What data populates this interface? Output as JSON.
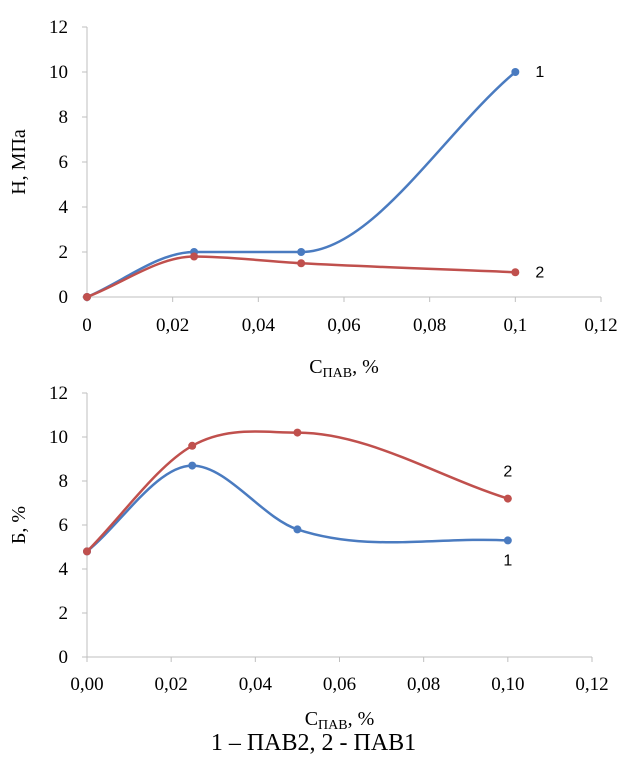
{
  "chart_data": [
    {
      "type": "line",
      "x": [
        0,
        0.025,
        0.05,
        0.1
      ],
      "series": [
        {
          "name": "1",
          "values": [
            0,
            2,
            2,
            10
          ],
          "color": "#4a7bc0"
        },
        {
          "name": "2",
          "values": [
            0,
            1.8,
            1.5,
            1.1
          ],
          "color": "#c0504d"
        }
      ],
      "xlim": [
        0,
        0.12
      ],
      "ylim": [
        0,
        12
      ],
      "xticks": [
        "0",
        "0,02",
        "0,04",
        "0,06",
        "0,08",
        "0,1",
        "0,12"
      ],
      "yticks": [
        "0",
        "2",
        "4",
        "6",
        "8",
        "10",
        "12"
      ],
      "ylabel": "Н, МПа",
      "xlabel_main": "С",
      "xlabel_sub": "ПАВ",
      "xlabel_unit": ", %",
      "grid": false,
      "smooth": true
    },
    {
      "type": "line",
      "x": [
        0,
        0.025,
        0.05,
        0.1
      ],
      "series": [
        {
          "name": "1",
          "values": [
            4.8,
            8.7,
            5.8,
            5.3
          ],
          "color": "#4a7bc0"
        },
        {
          "name": "2",
          "values": [
            4.8,
            9.6,
            10.2,
            7.2
          ],
          "color": "#c0504d"
        }
      ],
      "xlim": [
        0,
        0.12
      ],
      "ylim": [
        0,
        12
      ],
      "xticks": [
        "0,00",
        "0,02",
        "0,04",
        "0,06",
        "0,08",
        "0,10",
        "0,12"
      ],
      "yticks": [
        "0",
        "2",
        "4",
        "6",
        "8",
        "10",
        "12"
      ],
      "ylabel": "Б, %",
      "xlabel_main": "С",
      "xlabel_sub": "ПАВ",
      "xlabel_unit": ", %",
      "grid": false,
      "smooth": true
    }
  ],
  "caption": "1 – ПАВ2, 2 - ПАВ1"
}
